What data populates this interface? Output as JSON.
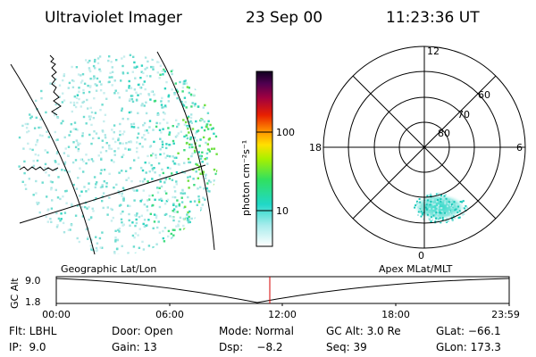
{
  "header": {
    "title": "Ultraviolet Imager",
    "date": "23 Sep 00",
    "time": "11:23:36 UT"
  },
  "colorbar": {
    "unit_label": "photon cm⁻²s⁻¹",
    "ticks": [
      "100",
      "10"
    ]
  },
  "polar_plot": {
    "mlt_labels": {
      "top": "12",
      "left": "18",
      "right": "6",
      "bottom": "0"
    },
    "lat_labels": [
      "60",
      "70",
      "80"
    ]
  },
  "strip": {
    "left_label": "Geographic Lat/Lon",
    "right_label": "Apex MLat/MLT",
    "y_axis_label": "GC Alt",
    "y_ticks": [
      "9.0",
      "1.8"
    ],
    "x_ticks": [
      "00:00",
      "06:00",
      "12:00",
      "18:00",
      "23:59"
    ],
    "marker_color": "#d40000"
  },
  "info_rows": [
    [
      "Flt: LBHL",
      "Door: Open",
      "Mode: Normal",
      "GC Alt: 3.0 Re",
      "GLat: −66.1"
    ],
    [
      "IP:  9.0",
      "Gain: 13",
      "Dsp:    −8.2",
      "Seq: 39",
      "GLon: 173.3"
    ]
  ]
}
